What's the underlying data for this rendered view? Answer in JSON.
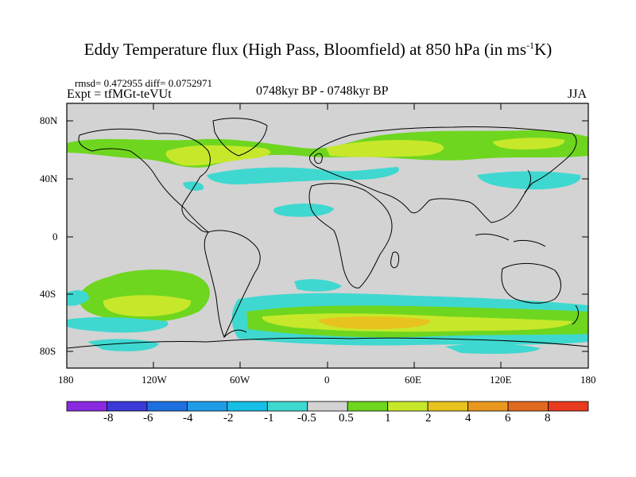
{
  "title_main": "Eddy Temperature flux (High Pass, Bloomfield) at 850 hPa (in ms",
  "title_sup": "-1",
  "title_end": "K)",
  "stats": "rmsd= 0.472955  diff= 0.0752971",
  "experiment": "Expt = tfMGt-teVUt",
  "period": "0748kyr BP - 0748kyr BP",
  "season": "JJA",
  "lat_labels": [
    "80N",
    "40N",
    "0",
    "40S",
    "80S"
  ],
  "lon_labels": [
    "180",
    "120W",
    "60W",
    "0",
    "60E",
    "120E",
    "180"
  ],
  "colorbar": {
    "labels": [
      "-8",
      "-6",
      "-4",
      "-2",
      "-1",
      "-0.5",
      "0.5",
      "1",
      "2",
      "4",
      "6",
      "8"
    ],
    "colors": [
      "#8a2be2",
      "#3a3ad8",
      "#1e6fe0",
      "#1f9ce8",
      "#17bfe6",
      "#3fd8d0",
      "#d3d3d3",
      "#6ed61f",
      "#c7e82a",
      "#e8c21f",
      "#e8981f",
      "#e06a1f",
      "#e83a1f"
    ]
  }
}
